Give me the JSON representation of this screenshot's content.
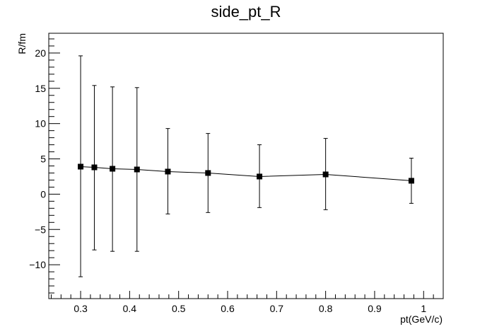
{
  "chart_data": {
    "type": "scatter",
    "title": "side_pt_R",
    "xlabel": "pt(GeV/c)",
    "ylabel": "R/fm",
    "xlim": [
      0.235,
      1.04
    ],
    "ylim": [
      -14.8,
      22.8
    ],
    "grid": false,
    "legend": "none",
    "x_ticks": [
      "0.3",
      "0.4",
      "0.5",
      "0.6",
      "0.7",
      "0.8",
      "0.9",
      "1"
    ],
    "y_ticks": [
      "20",
      "15",
      "10",
      "5",
      "0",
      "−5",
      "−10"
    ],
    "x_tick_values": [
      0.3,
      0.4,
      0.5,
      0.6,
      0.7,
      0.8,
      0.9,
      1.0
    ],
    "y_tick_values": [
      20,
      15,
      10,
      5,
      0,
      -5,
      -10
    ],
    "series": [
      {
        "x": [
          0.3,
          0.328,
          0.365,
          0.415,
          0.478,
          0.56,
          0.665,
          0.8,
          0.975
        ],
        "y": [
          3.9,
          3.8,
          3.6,
          3.5,
          3.2,
          3.0,
          2.5,
          2.8,
          1.9
        ],
        "err_low": [
          15.6,
          11.7,
          11.7,
          11.6,
          6.0,
          5.6,
          4.4,
          5.0,
          3.2
        ],
        "err_high": [
          15.7,
          11.6,
          11.6,
          11.6,
          6.1,
          5.6,
          4.5,
          5.1,
          3.2
        ]
      }
    ],
    "colors": {
      "marker": "#000000",
      "line": "#000000"
    }
  }
}
